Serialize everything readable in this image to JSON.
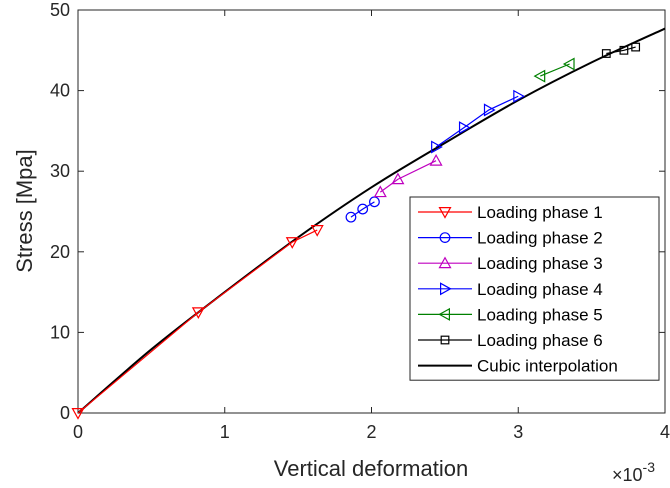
{
  "chart_data": {
    "type": "line",
    "xlabel": "Vertical deformation",
    "ylabel": "Stress [Mpa]",
    "x_exponent_base": "×10",
    "x_exponent_power": "-3",
    "x_multiplier": 0.001,
    "xlim": [
      0,
      4
    ],
    "ylim": [
      0,
      50
    ],
    "xticks": [
      0,
      1,
      2,
      3,
      4
    ],
    "yticks": [
      0,
      10,
      20,
      30,
      40,
      50
    ],
    "grid": false,
    "legend_position": "lower-right",
    "series": [
      {
        "name": "Loading phase 1",
        "color": "#ff0000",
        "marker": "triangle-down",
        "x": [
          0,
          0.82,
          1.46,
          1.63
        ],
        "y": [
          0,
          12.5,
          21.2,
          22.7
        ]
      },
      {
        "name": "Loading phase 2",
        "color": "#0000ff",
        "marker": "circle",
        "x": [
          1.86,
          1.94,
          2.02
        ],
        "y": [
          24.3,
          25.3,
          26.2
        ]
      },
      {
        "name": "Loading phase 3",
        "color": "#bf00bf",
        "marker": "triangle-up",
        "x": [
          2.06,
          2.18,
          2.44
        ],
        "y": [
          27.4,
          29.0,
          31.3
        ]
      },
      {
        "name": "Loading phase 4",
        "color": "#0000ff",
        "marker": "triangle-right",
        "x": [
          2.44,
          2.63,
          2.8,
          3.0
        ],
        "y": [
          33.0,
          35.4,
          37.6,
          39.3
        ]
      },
      {
        "name": "Loading phase 5",
        "color": "#008000",
        "marker": "triangle-left",
        "x": [
          3.15,
          3.35
        ],
        "y": [
          41.8,
          43.3
        ]
      },
      {
        "name": "Loading phase 6",
        "color": "#000000",
        "marker": "square",
        "x": [
          3.6,
          3.72,
          3.8
        ],
        "y": [
          44.6,
          45.0,
          45.4
        ]
      },
      {
        "name": "Cubic interpolation",
        "color": "#000000",
        "marker": "none",
        "x": [
          0,
          0.5,
          1.0,
          1.5,
          2.0,
          2.5,
          3.0,
          3.5,
          4.0
        ],
        "y": [
          0,
          7.9,
          15.0,
          21.8,
          28.0,
          33.5,
          38.8,
          43.5,
          47.7
        ]
      }
    ]
  }
}
